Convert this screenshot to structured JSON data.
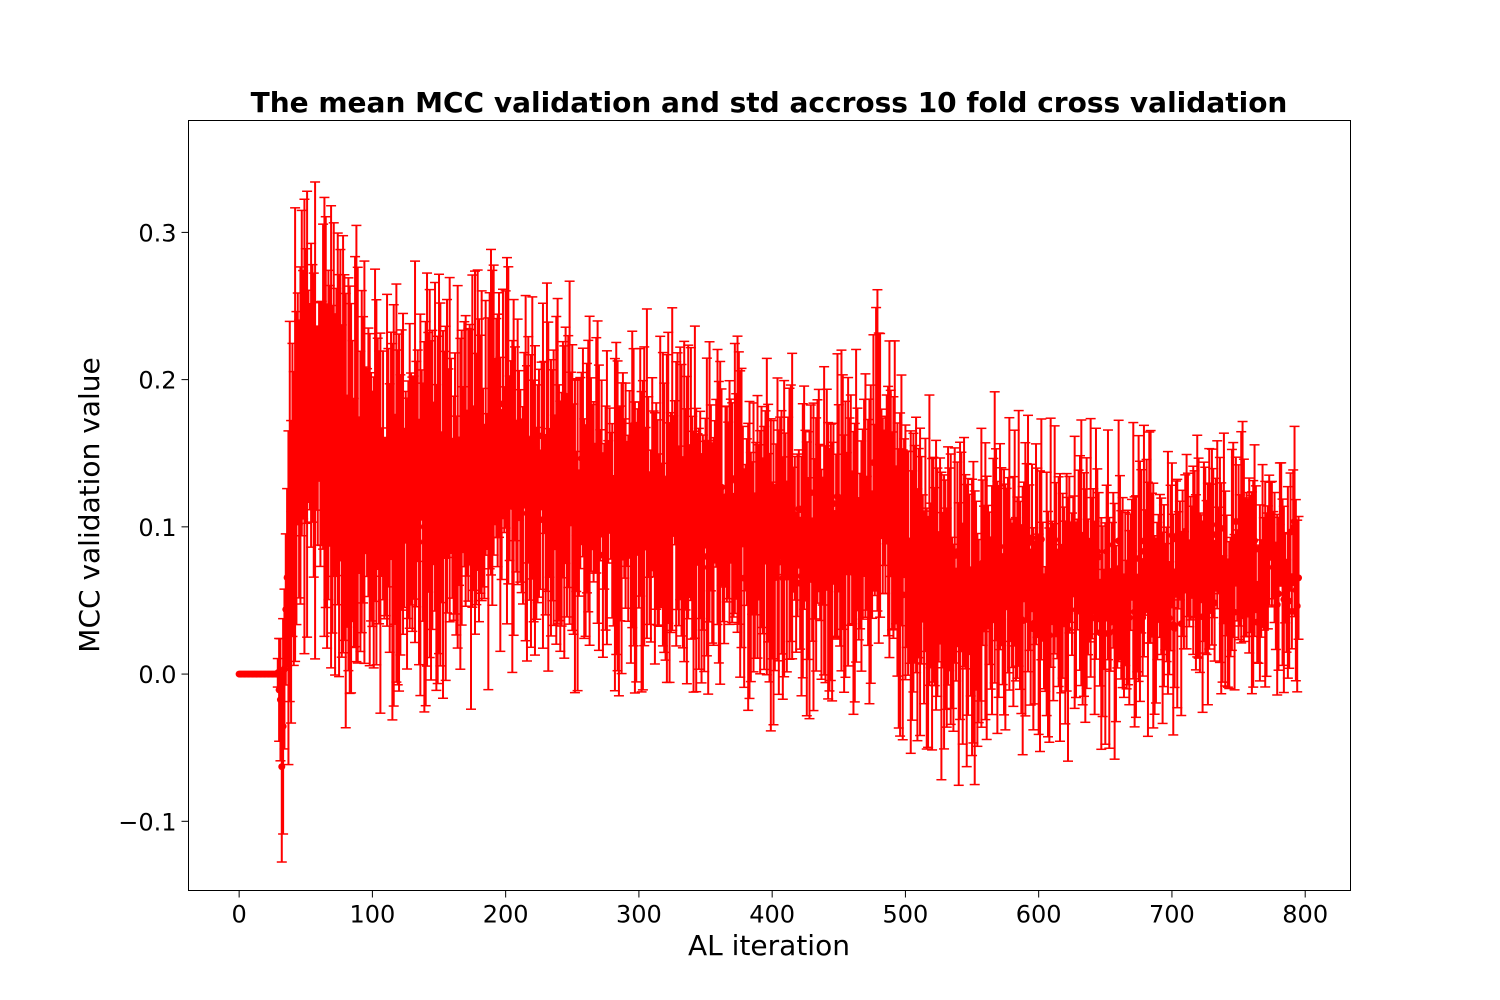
{
  "chart_data": {
    "type": "scatter",
    "title": "The mean MCC validation and std accross 10 fold cross validation",
    "xlabel": "AL iteration",
    "ylabel": "MCC validation value",
    "xlim": [
      -38,
      834
    ],
    "ylim": [
      -0.147,
      0.376
    ],
    "xticks": [
      0,
      100,
      200,
      300,
      400,
      500,
      600,
      700,
      800
    ],
    "xtick_labels": [
      "0",
      "100",
      "200",
      "300",
      "400",
      "500",
      "600",
      "700",
      "800"
    ],
    "yticks": [
      -0.1,
      0.0,
      0.1,
      0.2,
      0.3
    ],
    "ytick_labels": [
      "−0.1",
      "0.0",
      "0.1",
      "0.2",
      "0.3"
    ],
    "grid": false,
    "legend": "none",
    "color": "#ff0000",
    "errorbar": true,
    "n_points": 796,
    "x_start": 0,
    "x_step": 1,
    "zero_until": 28,
    "mean_profile": [
      [
        0,
        0.0
      ],
      [
        28,
        0.0
      ],
      [
        33,
        -0.05
      ],
      [
        36,
        0.06
      ],
      [
        45,
        0.17
      ],
      [
        60,
        0.18
      ],
      [
        80,
        0.14
      ],
      [
        100,
        0.13
      ],
      [
        130,
        0.12
      ],
      [
        160,
        0.13
      ],
      [
        200,
        0.15
      ],
      [
        250,
        0.12
      ],
      [
        300,
        0.11
      ],
      [
        350,
        0.1
      ],
      [
        400,
        0.1
      ],
      [
        450,
        0.09
      ],
      [
        480,
        0.12
      ],
      [
        500,
        0.08
      ],
      [
        530,
        0.05
      ],
      [
        560,
        0.06
      ],
      [
        600,
        0.06
      ],
      [
        650,
        0.06
      ],
      [
        700,
        0.06
      ],
      [
        750,
        0.07
      ],
      [
        795,
        0.07
      ]
    ],
    "std_profile": [
      [
        0,
        0.0
      ],
      [
        28,
        0.0
      ],
      [
        32,
        0.05
      ],
      [
        40,
        0.12
      ],
      [
        60,
        0.12
      ],
      [
        100,
        0.1
      ],
      [
        200,
        0.09
      ],
      [
        300,
        0.08
      ],
      [
        400,
        0.08
      ],
      [
        500,
        0.08
      ],
      [
        600,
        0.07
      ],
      [
        700,
        0.06
      ],
      [
        795,
        0.05
      ]
    ],
    "noise": 0.035
  }
}
